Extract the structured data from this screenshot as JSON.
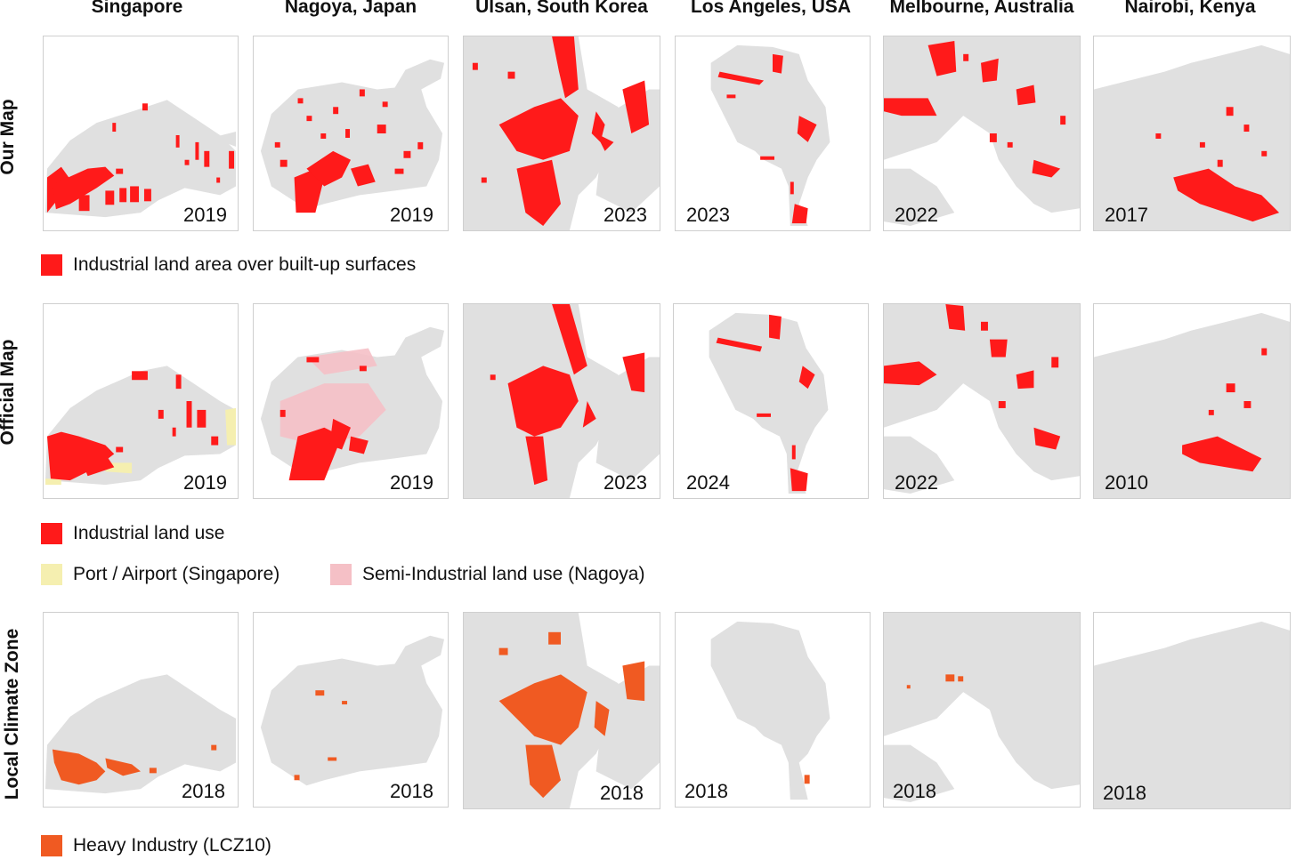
{
  "cities": [
    "Singapore",
    "Nagoya, Japan",
    "Ulsan, South Korea",
    "Los Angeles, USA",
    "Melbourne, Australia",
    "Nairobi, Kenya"
  ],
  "rows": [
    {
      "label": "Our Map",
      "years": [
        "2019",
        "2019",
        "2023",
        "2023",
        "2022",
        "2017"
      ]
    },
    {
      "label": "Official Map",
      "years": [
        "2019",
        "2019",
        "2023",
        "2024",
        "2022",
        "2010"
      ]
    },
    {
      "label": "Local Climate Zone",
      "years": [
        "2018",
        "2018",
        "2018",
        "2018",
        "2018",
        "2018"
      ]
    }
  ],
  "legends": {
    "our_map": {
      "label": "Industrial land area over built-up surfaces",
      "color": "#ff1a1a"
    },
    "official_industrial": {
      "label": "Industrial land use",
      "color": "#ff1a1a"
    },
    "official_port": {
      "label": "Port / Airport (Singapore)",
      "color": "#f5efb0"
    },
    "official_semi": {
      "label": "Semi-Industrial land use (Nagoya)",
      "color": "#f5c0c6"
    },
    "lcz": {
      "label": "Heavy Industry (LCZ10)",
      "color": "#f05a22"
    }
  },
  "colors": {
    "land": "#e0e0e0",
    "industrial": "#ff1a1a",
    "heavy_industry": "#f05a22",
    "port": "#f5efb0",
    "semi_industrial": "#f5c0c6"
  }
}
